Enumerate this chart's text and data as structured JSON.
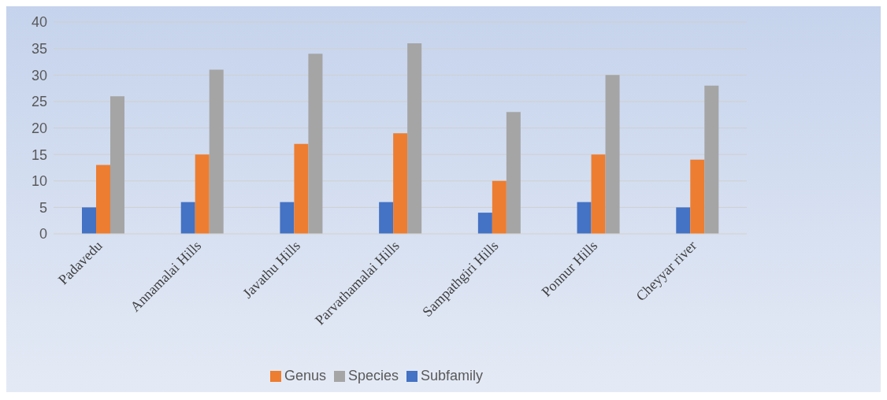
{
  "chart_data": {
    "type": "bar",
    "categories": [
      "Padavedu",
      "Annamalai Hills",
      "Javathu Hills",
      "Parvathamalai Hills",
      "Sampathgiri Hills",
      "Ponnur Hills",
      "Cheyyar river"
    ],
    "series": [
      {
        "name": "Subfamily",
        "color": "#4472c4",
        "values": [
          5,
          6,
          6,
          6,
          4,
          6,
          5
        ]
      },
      {
        "name": "Genus",
        "color": "#ed7d31",
        "values": [
          13,
          15,
          17,
          19,
          10,
          15,
          14
        ]
      },
      {
        "name": "Species",
        "color": "#a5a5a5",
        "values": [
          26,
          31,
          34,
          36,
          23,
          30,
          28
        ]
      }
    ],
    "ylim": [
      0,
      40
    ],
    "yticks": [
      0,
      5,
      10,
      15,
      20,
      25,
      30,
      35,
      40
    ],
    "grid": "y",
    "legend": "bottom"
  }
}
